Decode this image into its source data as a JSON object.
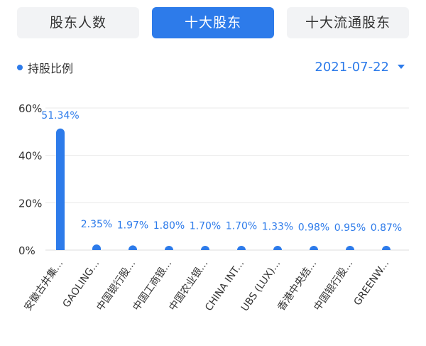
{
  "tabs": [
    {
      "label": "股东人数",
      "active": false
    },
    {
      "label": "十大股东",
      "active": true
    },
    {
      "label": "十大流通股东",
      "active": false
    }
  ],
  "legend": {
    "label": "持股比例",
    "color": "#2d7bea"
  },
  "date_select": {
    "value": "2021-07-22"
  },
  "colors": {
    "accent": "#2d7bea",
    "grid": "#e8e8e8",
    "text": "#333333"
  },
  "chart_data": {
    "type": "bar",
    "categories": [
      "安徽古井集...",
      "GAOLING...",
      "中国银行股...",
      "中国工商银...",
      "中国农业银...",
      "CHINA INT...",
      "UBS (LUX)...",
      "香港中央结...",
      "中国银行股...",
      "GREENW..."
    ],
    "values": [
      51.34,
      2.35,
      1.97,
      1.8,
      1.7,
      1.7,
      1.33,
      0.98,
      0.95,
      0.87
    ],
    "data_labels": [
      "51.34%",
      "2.35%",
      "1.97%",
      "1.80%",
      "1.70%",
      "1.70%",
      "1.33%",
      "0.98%",
      "0.95%",
      "0.87%"
    ],
    "series": [
      {
        "name": "持股比例"
      }
    ],
    "yticks": [
      "0%",
      "20%",
      "40%",
      "60%"
    ],
    "ytick_values": [
      0,
      20,
      40,
      60
    ],
    "ylim": [
      0,
      60
    ],
    "grid": true,
    "legend_position": "top-left"
  }
}
